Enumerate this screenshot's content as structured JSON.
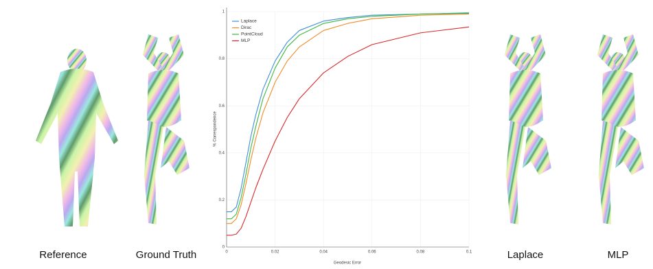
{
  "captions": [
    "Reference",
    "Ground Truth",
    "Laplace",
    "MLP"
  ],
  "chart_data": {
    "type": "line",
    "xlabel": "Geodesic Error",
    "ylabel": "% Correspondence",
    "x": [
      0,
      0.002,
      0.004,
      0.006,
      0.008,
      0.01,
      0.012,
      0.015,
      0.02,
      0.025,
      0.03,
      0.04,
      0.05,
      0.06,
      0.08,
      0.1
    ],
    "series": [
      {
        "name": "Laplace",
        "color": "#3d8fd6",
        "values": [
          0.15,
          0.15,
          0.17,
          0.25,
          0.36,
          0.47,
          0.56,
          0.67,
          0.79,
          0.87,
          0.92,
          0.96,
          0.975,
          0.985,
          0.99,
          0.995
        ]
      },
      {
        "name": "Dirac",
        "color": "#f08a24",
        "values": [
          0.1,
          0.1,
          0.12,
          0.18,
          0.27,
          0.37,
          0.46,
          0.57,
          0.7,
          0.79,
          0.85,
          0.92,
          0.95,
          0.97,
          0.985,
          0.99
        ]
      },
      {
        "name": "PointCloud",
        "color": "#3cb83c",
        "values": [
          0.12,
          0.12,
          0.14,
          0.21,
          0.31,
          0.42,
          0.51,
          0.63,
          0.76,
          0.85,
          0.9,
          0.95,
          0.97,
          0.98,
          0.99,
          0.993
        ]
      },
      {
        "name": "MLP",
        "color": "#d62728",
        "values": [
          0.05,
          0.05,
          0.055,
          0.08,
          0.13,
          0.19,
          0.25,
          0.33,
          0.45,
          0.55,
          0.63,
          0.74,
          0.81,
          0.86,
          0.91,
          0.935
        ]
      }
    ],
    "xlim": [
      0,
      0.1
    ],
    "xticks": [
      0,
      0.02,
      0.04,
      0.06,
      0.08,
      0.1
    ],
    "ylim": [
      0,
      1
    ],
    "yticks": [
      0,
      0.2,
      0.4,
      0.6,
      0.8,
      1
    ],
    "grid": true,
    "legend": "upper-left"
  }
}
